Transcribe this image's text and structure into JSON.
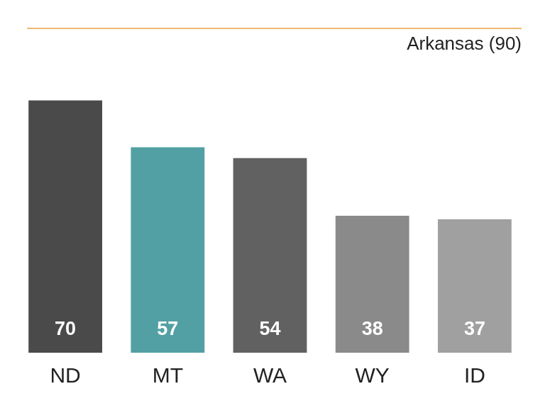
{
  "chart_data": {
    "type": "bar",
    "categories": [
      "ND",
      "MT",
      "WA",
      "WY",
      "ID"
    ],
    "values": [
      70,
      57,
      54,
      38,
      37
    ],
    "colors": [
      "#4a4a4a",
      "#52a0a4",
      "#616161",
      "#8a8a8a",
      "#a0a0a0"
    ],
    "ylim": [
      0,
      90
    ],
    "grid": false,
    "tick_labels": "x",
    "data_labels": true,
    "reference_lines": [
      {
        "value": 90,
        "label": "Arkansas (90)",
        "color": "#f2b873"
      }
    ]
  }
}
